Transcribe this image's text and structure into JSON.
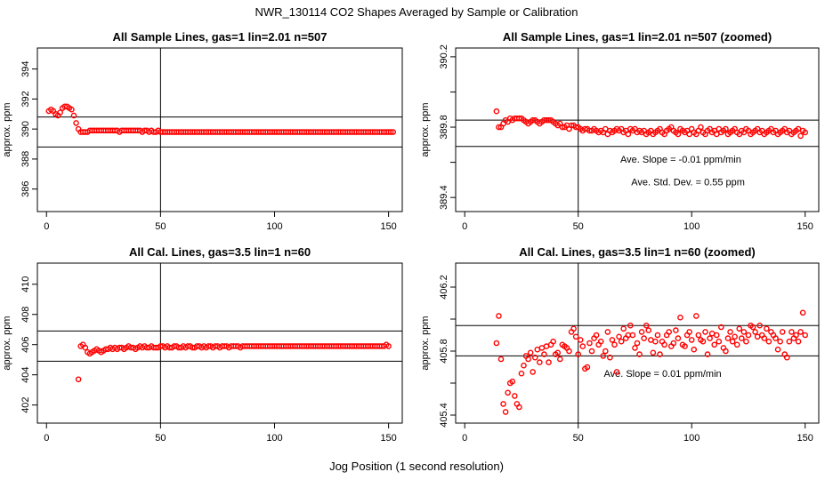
{
  "figure": {
    "title": "NWR_130114  CO2 Shapes Averaged by Sample or Calibration",
    "xlabel": "Jog Position (1 second resolution)"
  },
  "chart_data": [
    {
      "type": "scatter",
      "title": "All Sample Lines, gas=1 lin=2.01 n=507",
      "xlabel": "",
      "ylabel": "approx. ppm",
      "xlim": [
        -4,
        156
      ],
      "ylim": [
        384.5,
        395.4
      ],
      "xticks": [
        0,
        50,
        100,
        150
      ],
      "yticks": [
        386,
        388,
        390,
        392,
        394
      ],
      "hlines": [
        390.8,
        388.8
      ],
      "vlines": [
        50
      ],
      "annotations": [],
      "series": [
        {
          "color": "#ff0000",
          "x_start": 1,
          "x_step": 1,
          "y": [
            391.2,
            391.3,
            391.2,
            391.0,
            390.9,
            391.1,
            391.4,
            391.5,
            391.5,
            391.4,
            391.3,
            390.9,
            390.4,
            390.0,
            389.8,
            389.8,
            389.8,
            389.8,
            389.9,
            389.9,
            389.9,
            389.9,
            389.9,
            389.9,
            389.9,
            389.9,
            389.9,
            389.9,
            389.9,
            389.9,
            389.9,
            389.8,
            389.9,
            389.9,
            389.9,
            389.9,
            389.9,
            389.9,
            389.9,
            389.9,
            389.9,
            389.8,
            389.9,
            389.9,
            389.8,
            389.9,
            389.8,
            389.8,
            389.9,
            389.8,
            389.8,
            389.8,
            389.8,
            389.8,
            389.8,
            389.8,
            389.8,
            389.8,
            389.8,
            389.8,
            389.8,
            389.8,
            389.8,
            389.8,
            389.8,
            389.8,
            389.8,
            389.8,
            389.8,
            389.8,
            389.8,
            389.8,
            389.8,
            389.8,
            389.8,
            389.8,
            389.8,
            389.8,
            389.8,
            389.8,
            389.8,
            389.8,
            389.8,
            389.8,
            389.8,
            389.8,
            389.8,
            389.8,
            389.8,
            389.8,
            389.8,
            389.8,
            389.8,
            389.8,
            389.8,
            389.8,
            389.8,
            389.8,
            389.8,
            389.8,
            389.8,
            389.8,
            389.8,
            389.8,
            389.8,
            389.8,
            389.8,
            389.8,
            389.8,
            389.8,
            389.8,
            389.8,
            389.8,
            389.8,
            389.8,
            389.8,
            389.8,
            389.8,
            389.8,
            389.8,
            389.8,
            389.8,
            389.8,
            389.8,
            389.8,
            389.8,
            389.8,
            389.8,
            389.8,
            389.8,
            389.8,
            389.8,
            389.8,
            389.8,
            389.8,
            389.8,
            389.8,
            389.8,
            389.8,
            389.8,
            389.8,
            389.8,
            389.8,
            389.8,
            389.8,
            389.8,
            389.8,
            389.8,
            389.8,
            389.8,
            389.8,
            389.8
          ]
        }
      ]
    },
    {
      "type": "scatter",
      "title": "All Sample Lines, gas=1 lin=2.01 n=507 (zoomed)",
      "xlabel": "",
      "ylabel": "approx. ppm",
      "xlim": [
        -4,
        156
      ],
      "ylim": [
        389.32,
        390.25
      ],
      "xticks": [
        0,
        50,
        100,
        150
      ],
      "yticks": [
        389.4,
        389.6,
        389.8,
        390.0,
        390.2
      ],
      "ytick_labels": [
        "389.4",
        "",
        "389.8",
        "",
        "390.2"
      ],
      "hlines": [
        389.84,
        389.69
      ],
      "vlines": [
        50
      ],
      "annotations": [
        "Ave. Slope =  -0.01  ppm/min",
        "Ave. Std. Dev. =  0.55  ppm"
      ],
      "series": [
        {
          "color": "#ff0000",
          "x_start": 14,
          "x_step": 1,
          "y": [
            389.89,
            389.8,
            389.8,
            389.82,
            389.84,
            389.83,
            389.85,
            389.84,
            389.85,
            389.85,
            389.85,
            389.85,
            389.84,
            389.83,
            389.82,
            389.83,
            389.84,
            389.84,
            389.83,
            389.82,
            389.83,
            389.84,
            389.84,
            389.84,
            389.84,
            389.83,
            389.82,
            389.81,
            389.82,
            389.8,
            389.8,
            389.81,
            389.79,
            389.81,
            389.81,
            389.8,
            389.8,
            389.79,
            389.78,
            389.79,
            389.79,
            389.78,
            389.78,
            389.79,
            389.78,
            389.77,
            389.78,
            389.77,
            389.79,
            389.76,
            389.78,
            389.77,
            389.78,
            389.79,
            389.78,
            389.79,
            389.77,
            389.78,
            389.76,
            389.79,
            389.78,
            389.79,
            389.77,
            389.78,
            389.77,
            389.78,
            389.76,
            389.77,
            389.78,
            389.76,
            389.77,
            389.78,
            389.79,
            389.77,
            389.76,
            389.78,
            389.79,
            389.8,
            389.78,
            389.77,
            389.76,
            389.79,
            389.78,
            389.77,
            389.78,
            389.76,
            389.79,
            389.77,
            389.76,
            389.78,
            389.8,
            389.77,
            389.76,
            389.78,
            389.79,
            389.77,
            389.78,
            389.76,
            389.79,
            389.77,
            389.78,
            389.79,
            389.76,
            389.77,
            389.78,
            389.79,
            389.77,
            389.76,
            389.78,
            389.77,
            389.79,
            389.78,
            389.76,
            389.77,
            389.78,
            389.79,
            389.77,
            389.78,
            389.76,
            389.77,
            389.78,
            389.79,
            389.77,
            389.78,
            389.76,
            389.77,
            389.78,
            389.79,
            389.77,
            389.78,
            389.76,
            389.77,
            389.78,
            389.79,
            389.75,
            389.78,
            389.77
          ]
        }
      ]
    },
    {
      "type": "scatter",
      "title": "All Cal. Lines, gas=3.5 lin=1 n=60",
      "xlabel": "",
      "ylabel": "approx. ppm",
      "xlim": [
        -4,
        156
      ],
      "ylim": [
        400.8,
        411.4
      ],
      "xticks": [
        0,
        50,
        100,
        150
      ],
      "yticks": [
        402,
        404,
        406,
        408,
        410
      ],
      "hlines": [
        406.9,
        404.9
      ],
      "vlines": [
        50
      ],
      "annotations": [],
      "series": [
        {
          "color": "#ff0000",
          "x_start": 14,
          "x_step": 1,
          "y": [
            403.7,
            405.9,
            406.0,
            405.8,
            405.5,
            405.4,
            405.5,
            405.6,
            405.7,
            405.6,
            405.5,
            405.6,
            405.7,
            405.7,
            405.8,
            405.7,
            405.8,
            405.7,
            405.8,
            405.8,
            405.7,
            405.8,
            405.9,
            405.8,
            405.8,
            405.7,
            405.8,
            405.9,
            405.8,
            405.9,
            405.8,
            405.8,
            405.9,
            405.8,
            405.8,
            405.8,
            405.9,
            405.9,
            405.8,
            405.9,
            405.8,
            405.8,
            405.9,
            405.9,
            405.8,
            405.8,
            405.9,
            405.8,
            405.9,
            405.9,
            405.8,
            405.8,
            405.9,
            405.9,
            405.8,
            405.9,
            405.8,
            405.9,
            405.9,
            405.8,
            405.9,
            405.9,
            405.8,
            405.9,
            405.9,
            405.9,
            405.8,
            405.9,
            405.9,
            405.9,
            405.9,
            405.8,
            405.9,
            405.9,
            405.9,
            405.9,
            405.9,
            405.9,
            405.9,
            405.9,
            405.9,
            405.9,
            405.9,
            405.9,
            405.9,
            405.9,
            405.9,
            405.9,
            405.9,
            405.9,
            405.9,
            405.9,
            405.9,
            405.9,
            405.9,
            405.9,
            405.9,
            405.9,
            405.9,
            405.9,
            405.9,
            405.9,
            405.9,
            405.9,
            405.9,
            405.9,
            405.9,
            405.9,
            405.9,
            405.9,
            405.9,
            405.9,
            405.9,
            405.9,
            405.9,
            405.9,
            405.9,
            405.9,
            405.9,
            405.9,
            405.9,
            405.9,
            405.9,
            405.9,
            405.9,
            405.9,
            405.9,
            405.9,
            405.9,
            405.9,
            405.9,
            405.9,
            405.9,
            405.9,
            405.9,
            406.0,
            405.9
          ]
        }
      ]
    },
    {
      "type": "scatter",
      "title": "All Cal. Lines, gas=3.5 lin=1 n=60 (zoomed)",
      "xlabel": "",
      "ylabel": "approx. ppm",
      "xlim": [
        -4,
        156
      ],
      "ylim": [
        405.35,
        406.35
      ],
      "xticks": [
        0,
        50,
        100,
        150
      ],
      "yticks": [
        405.4,
        405.6,
        405.8,
        406.0,
        406.2
      ],
      "ytick_labels": [
        "405.4",
        "",
        "405.8",
        "",
        "406.2"
      ],
      "hlines": [
        405.96,
        405.77
      ],
      "vlines": [
        50
      ],
      "annotations": [
        "Ave. Slope =  0.01  ppm/min"
      ],
      "series": [
        {
          "color": "#ff0000",
          "x_start": 14,
          "x_step": 1,
          "y": [
            405.85,
            406.02,
            405.75,
            405.47,
            405.42,
            405.54,
            405.6,
            405.61,
            405.52,
            405.47,
            405.45,
            405.66,
            405.71,
            405.77,
            405.75,
            405.79,
            405.67,
            405.76,
            405.81,
            405.73,
            405.82,
            405.78,
            405.83,
            405.73,
            405.84,
            405.86,
            405.78,
            405.79,
            405.75,
            405.84,
            405.83,
            405.82,
            405.8,
            405.92,
            405.94,
            405.89,
            405.78,
            405.87,
            405.83,
            405.69,
            405.7,
            405.85,
            405.8,
            405.88,
            405.9,
            405.84,
            405.86,
            405.77,
            405.8,
            405.92,
            405.76,
            405.87,
            405.84,
            405.67,
            405.89,
            405.86,
            405.94,
            405.88,
            405.9,
            405.96,
            405.9,
            405.82,
            405.85,
            405.78,
            405.92,
            405.88,
            405.96,
            405.93,
            405.87,
            405.79,
            405.86,
            405.9,
            405.78,
            405.86,
            405.84,
            405.9,
            405.92,
            405.83,
            405.85,
            405.93,
            405.88,
            406.01,
            405.84,
            405.83,
            405.9,
            405.92,
            405.87,
            405.81,
            406.02,
            405.9,
            405.87,
            405.86,
            405.92,
            405.78,
            405.88,
            405.91,
            405.84,
            405.9,
            405.86,
            405.95,
            405.82,
            405.8,
            405.88,
            405.92,
            405.86,
            405.89,
            405.84,
            405.94,
            405.88,
            405.92,
            405.86,
            405.9,
            405.96,
            405.95,
            405.92,
            405.89,
            405.96,
            405.9,
            405.88,
            405.94,
            405.86,
            405.92,
            405.9,
            405.88,
            405.81,
            405.86,
            405.92,
            405.78,
            405.76,
            405.86,
            405.92,
            405.88,
            405.9,
            405.86,
            405.92,
            406.04,
            405.9
          ]
        }
      ]
    }
  ]
}
